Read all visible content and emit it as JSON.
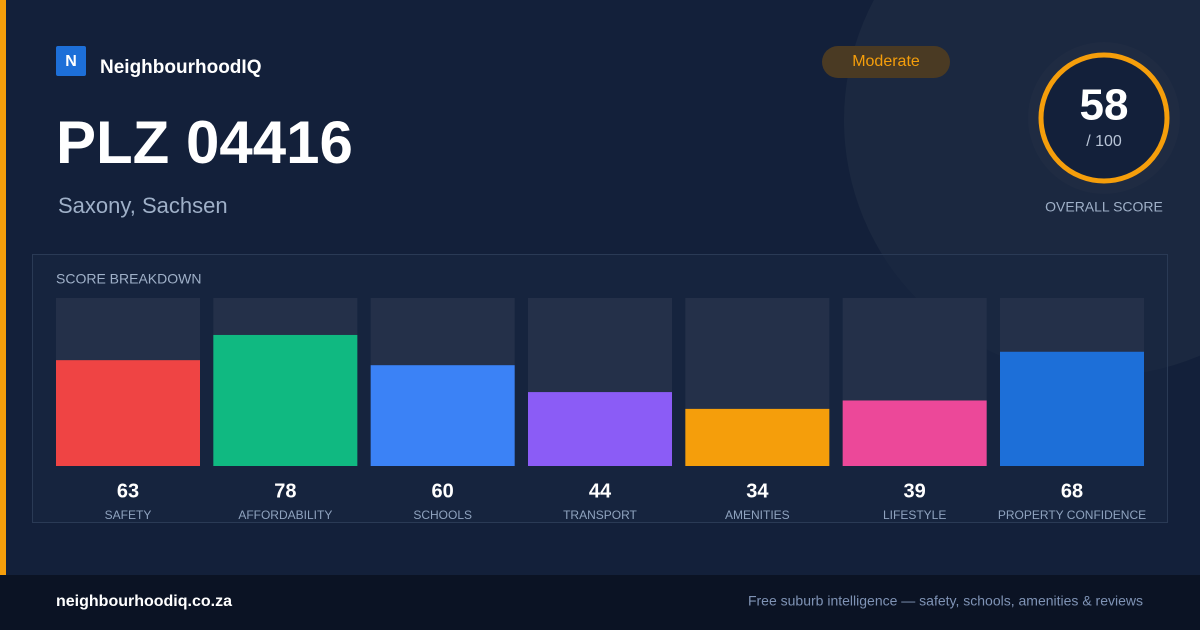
{
  "brand": {
    "logo_letter": "N",
    "name": "NeighbourhoodIQ"
  },
  "badge": "Moderate",
  "title": "PLZ 04416",
  "subtitle": "Saxony, Sachsen",
  "score": {
    "value": "58",
    "max_label": "/ 100",
    "caption": "OVERALL SCORE"
  },
  "footer": {
    "site": "neighbourhoodiq.co.za",
    "tagline": "Free suburb intelligence — safety, schools, amenities & reviews"
  },
  "chart_data": {
    "type": "bar",
    "title": "SCORE BREAKDOWN",
    "categories": [
      "SAFETY",
      "AFFORDABILITY",
      "SCHOOLS",
      "TRANSPORT",
      "AMENITIES",
      "LIFESTYLE",
      "PROPERTY CONFIDENCE"
    ],
    "values": [
      63,
      78,
      60,
      44,
      34,
      39,
      68
    ],
    "colors": [
      "#ef4444",
      "#10b981",
      "#3b82f6",
      "#8b5cf6",
      "#f59e0b",
      "#ec4899",
      "#1d6fd8"
    ],
    "ylim": [
      0,
      100
    ]
  }
}
